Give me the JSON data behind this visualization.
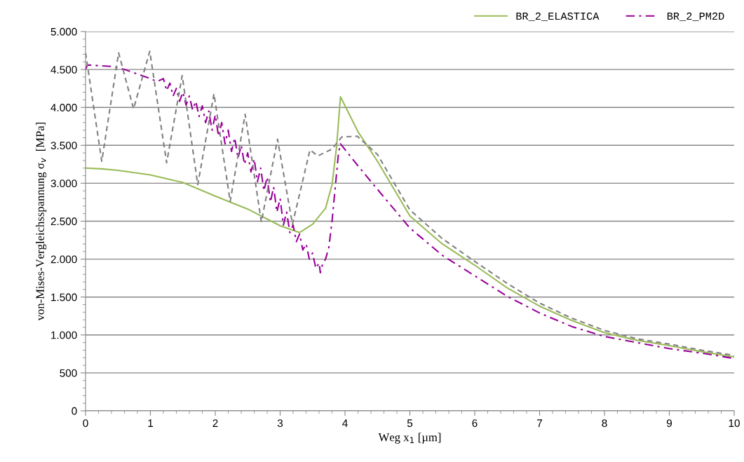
{
  "chart_data": {
    "type": "line",
    "xlabel": "Weg x$_{1}$ [µm]",
    "ylabel": "von-Mises-Vergleichsspannung σ$_{v}$  [MPa]",
    "xlim": [
      0,
      10
    ],
    "xticks": [
      0,
      1,
      2,
      3,
      4,
      5,
      6,
      7,
      8,
      9,
      10
    ],
    "ylim": [
      0,
      5000
    ],
    "yticks": [
      0,
      500,
      {
        "value": 1000,
        "label": "1.000"
      },
      {
        "value": 1500,
        "label": "1.500"
      },
      {
        "value": 2000,
        "label": "2.000"
      },
      {
        "value": 2500,
        "label": "2.500"
      },
      {
        "value": 3000,
        "label": "3.000"
      },
      {
        "value": 3500,
        "label": "3.500"
      },
      {
        "value": 4000,
        "label": "4.000"
      },
      {
        "value": 4500,
        "label": "4.500"
      },
      {
        "value": 5000,
        "label": "5.000"
      }
    ],
    "grid": "y",
    "legend": "top right",
    "marker": "none",
    "series": [
      {
        "name": "BR_2_ELASTICA",
        "color": "#9bbb59",
        "line_style": "solid",
        "x": [
          0,
          0.25,
          0.5,
          1.0,
          1.5,
          2.0,
          2.5,
          3.0,
          3.3,
          3.5,
          3.7,
          3.8,
          3.87,
          3.93,
          4.2,
          4.5,
          5.0,
          5.5,
          6.0,
          6.5,
          7.0,
          7.5,
          8.0,
          8.5,
          9.0,
          9.5,
          10.0
        ],
        "values": [
          3200,
          3190,
          3170,
          3110,
          3010,
          2830,
          2660,
          2440,
          2350,
          2460,
          2670,
          2980,
          3480,
          4140,
          3680,
          3290,
          2570,
          2200,
          1920,
          1620,
          1380,
          1190,
          1030,
          930,
          860,
          780,
          710
        ]
      },
      {
        "name": "BR_2_PM2D",
        "color": "#990099",
        "line_style": "dashdot",
        "x": [
          0,
          0.03,
          0.2,
          0.4,
          0.6,
          0.8,
          1.0,
          1.1,
          1.2,
          1.25,
          1.3,
          1.35,
          1.4,
          1.45,
          1.5,
          1.55,
          1.6,
          1.65,
          1.7,
          1.75,
          1.8,
          1.85,
          1.9,
          1.95,
          2.0,
          2.05,
          2.1,
          2.15,
          2.2,
          2.25,
          2.3,
          2.35,
          2.4,
          2.45,
          2.5,
          2.55,
          2.6,
          2.65,
          2.7,
          2.75,
          2.8,
          2.85,
          2.9,
          2.95,
          3.0,
          3.05,
          3.1,
          3.15,
          3.2,
          3.25,
          3.3,
          3.35,
          3.4,
          3.45,
          3.5,
          3.55,
          3.6,
          3.62,
          3.65,
          3.7,
          3.75,
          3.8,
          3.85,
          3.9,
          3.93,
          4.2,
          4.5,
          5.0,
          5.5,
          6.0,
          6.5,
          7.0,
          7.5,
          8.0,
          8.5,
          9.0,
          9.5,
          10.0
        ],
        "values": [
          4500,
          4560,
          4550,
          4540,
          4500,
          4440,
          4380,
          4340,
          4380,
          4220,
          4320,
          4150,
          4250,
          4080,
          4200,
          4030,
          4150,
          3970,
          4080,
          3880,
          4020,
          3800,
          3950,
          3700,
          3900,
          3620,
          3800,
          3520,
          3700,
          3420,
          3600,
          3330,
          3500,
          3250,
          3400,
          3150,
          3320,
          3020,
          3200,
          2900,
          3080,
          2750,
          2950,
          2620,
          2800,
          2450,
          2620,
          2350,
          2450,
          2230,
          2330,
          2120,
          2200,
          2000,
          2080,
          1880,
          1950,
          1820,
          1920,
          2000,
          2150,
          2500,
          2950,
          3400,
          3520,
          3230,
          2920,
          2410,
          2050,
          1780,
          1510,
          1290,
          1110,
          980,
          900,
          820,
          760,
          690
        ]
      },
      {
        "color": "#808080",
        "line_style": "dashed",
        "x": [
          0,
          0.25,
          0.51,
          0.74,
          0.99,
          1.25,
          1.49,
          1.73,
          1.98,
          2.23,
          2.46,
          2.71,
          2.96,
          3.19,
          3.46,
          3.58,
          3.8,
          3.95,
          4.19,
          4.5,
          5.0,
          5.5,
          6.0,
          6.5,
          7.0,
          7.5,
          8.0,
          8.5,
          9.0,
          9.5,
          10.0
        ],
        "values": [
          4720,
          3290,
          4720,
          3980,
          4740,
          3270,
          4420,
          2980,
          4180,
          2760,
          3910,
          2490,
          3580,
          2460,
          3440,
          3360,
          3450,
          3610,
          3620,
          3380,
          2650,
          2270,
          1970,
          1680,
          1420,
          1220,
          1060,
          950,
          880,
          800,
          730
        ]
      }
    ]
  }
}
